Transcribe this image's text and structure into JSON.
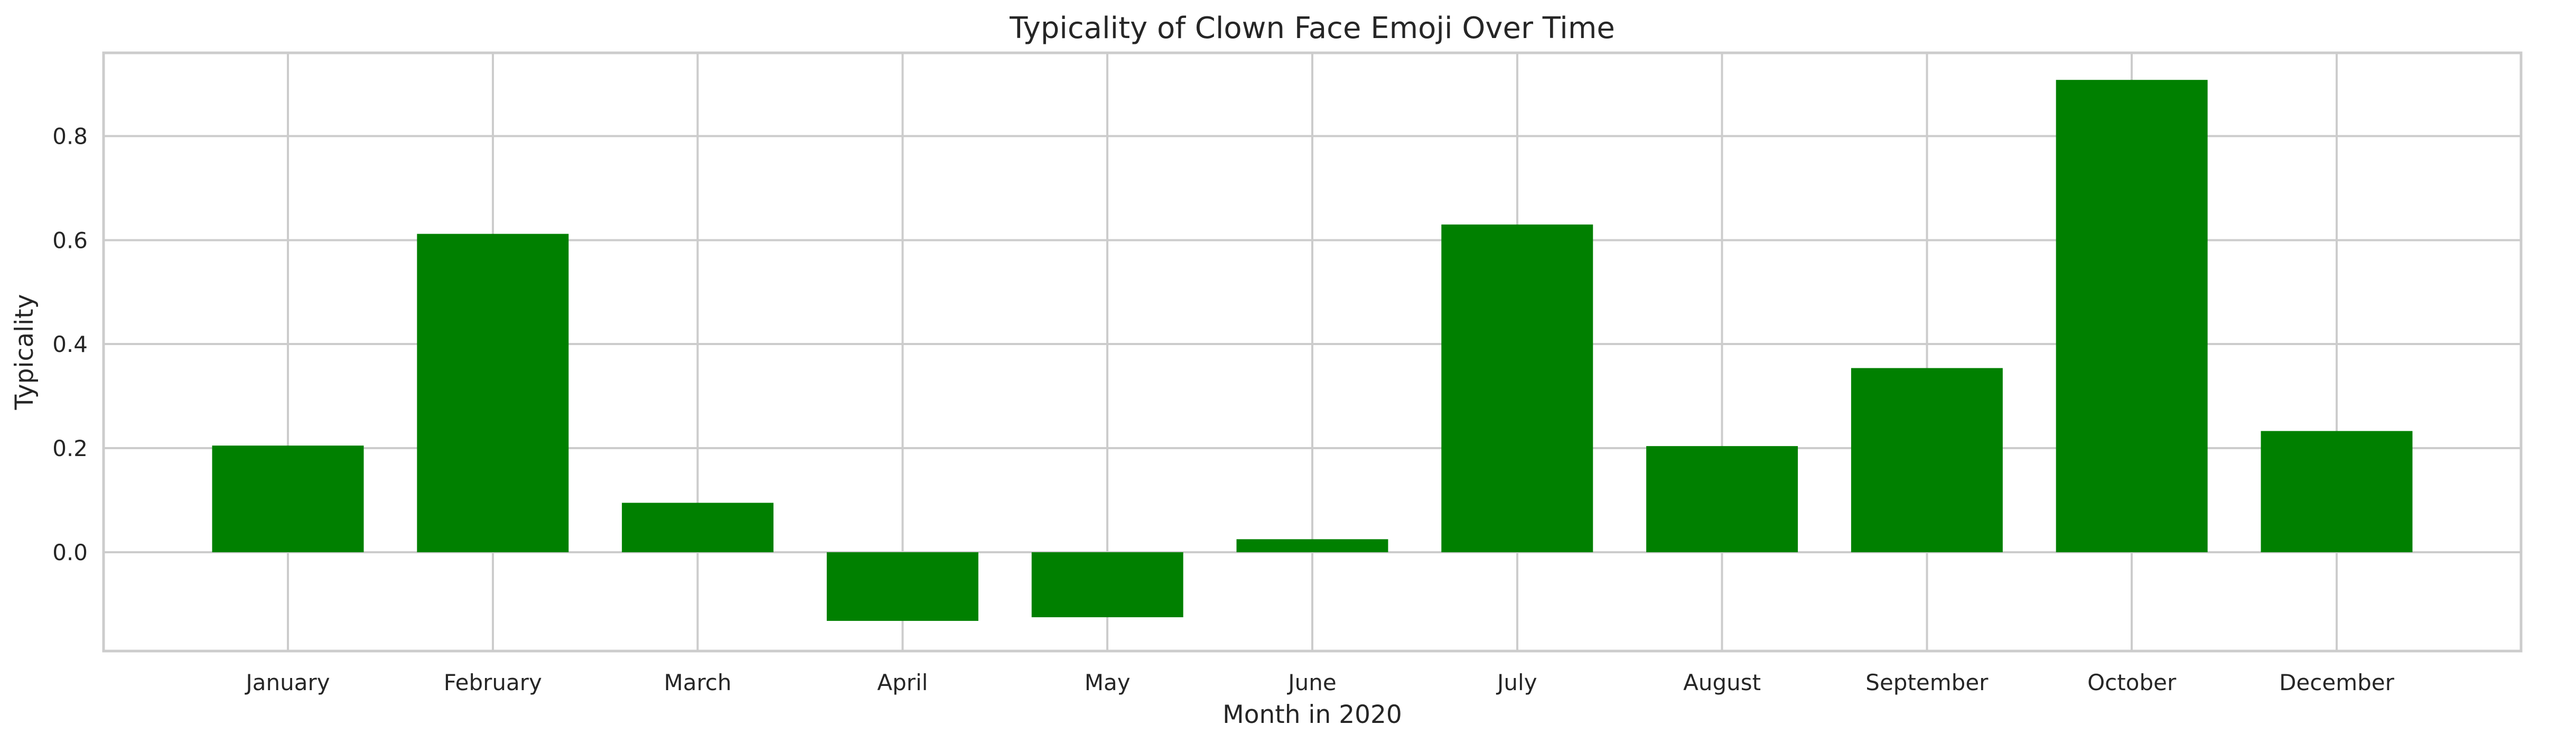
{
  "chart_data": {
    "type": "bar",
    "title": "Typicality of Clown Face Emoji Over Time",
    "xlabel": "Month in 2020",
    "ylabel": "Typicality",
    "categories": [
      "January",
      "February",
      "March",
      "April",
      "May",
      "June",
      "July",
      "August",
      "September",
      "October",
      "December"
    ],
    "values": [
      0.205,
      0.612,
      0.095,
      -0.132,
      -0.125,
      0.025,
      0.63,
      0.204,
      0.354,
      0.908,
      0.233
    ],
    "ylim": [
      -0.19,
      0.96
    ],
    "yticks": [
      0.0,
      0.2,
      0.4,
      0.6,
      0.8
    ],
    "ytick_labels": [
      "0.0",
      "0.2",
      "0.4",
      "0.6",
      "0.8"
    ],
    "bar_color": "#008000",
    "grid": true
  }
}
